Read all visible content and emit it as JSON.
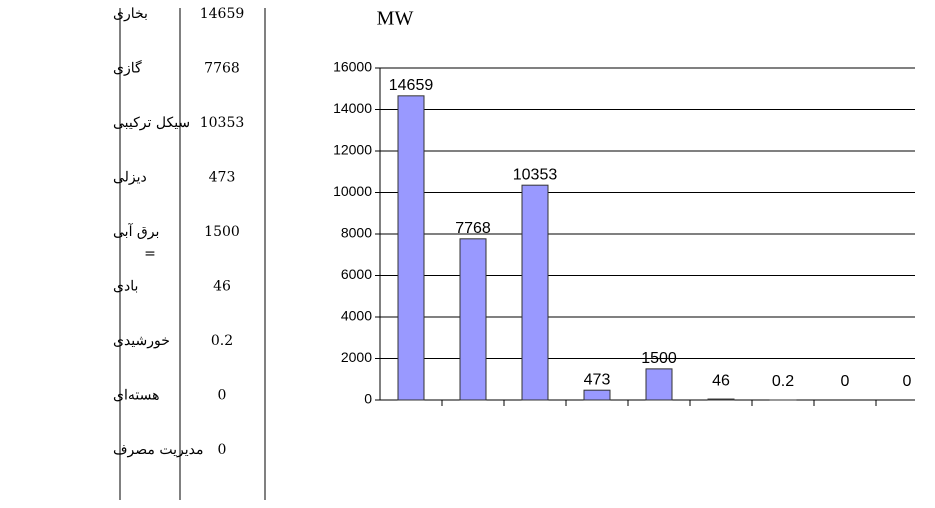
{
  "table": {
    "rows": [
      {
        "name": "بخاری",
        "value": 14659
      },
      {
        "name": "گازی",
        "value": 7768
      },
      {
        "name": "سیکل ترکیبی",
        "value": 10353
      },
      {
        "name": "دیزلی",
        "value": 473
      },
      {
        "name": "برق آبی",
        "value": 1500
      },
      {
        "name": "بادی",
        "value": 46
      },
      {
        "name": "خورشیدی",
        "value": 0.2
      },
      {
        "name": "هسته‌ای",
        "value": 0
      },
      {
        "name": "مدیریت مصرف",
        "value": 0
      }
    ],
    "equals": "="
  },
  "chart_data": {
    "type": "bar",
    "title": "MW",
    "categories": [
      null,
      null,
      null,
      null,
      null,
      null,
      null,
      null,
      null
    ],
    "values": [
      14659,
      7768,
      10353,
      473,
      1500,
      46,
      0.2,
      0,
      0
    ],
    "color": "#9999ff",
    "ylim": [
      0,
      16000
    ],
    "yticks": [
      0,
      2000,
      4000,
      6000,
      8000,
      10000,
      12000,
      14000,
      16000
    ],
    "grid": true
  }
}
